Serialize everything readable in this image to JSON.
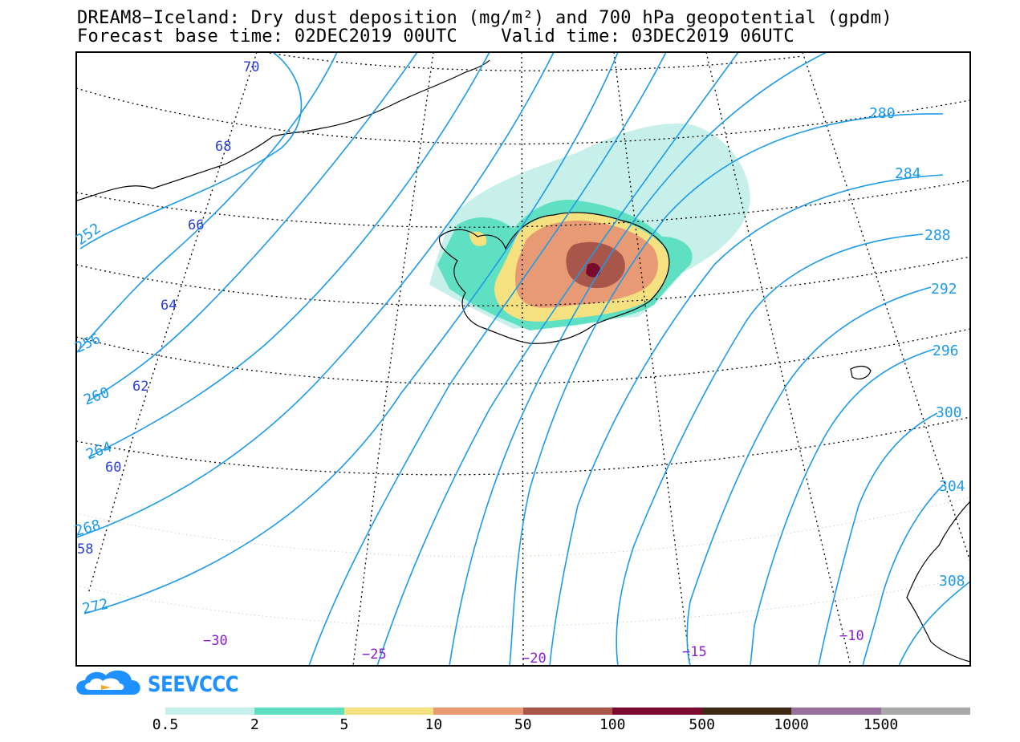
{
  "title_line1": "DREAM8−Iceland: Dry dust deposition (mg/m²) and 700 hPa geopotential (gpdm)",
  "title_line2": "Forecast base time: 02DEC2019 00UTC    Valid time: 03DEC2019 06UTC",
  "logo_text": "SEEVCCC",
  "colors": {
    "contour": "#1e9be8",
    "lat_label": "#2a3fd6",
    "lon_label": "#8a1fd0",
    "frame": "#000000"
  },
  "latitude_labels": [
    "70",
    "68",
    "66",
    "64",
    "62",
    "60",
    "58"
  ],
  "longitude_labels": [
    "−30",
    "−25",
    "−20",
    "−15",
    "−10"
  ],
  "geopotential_contours": [
    "252",
    "256",
    "260",
    "264",
    "268",
    "272",
    "280",
    "284",
    "288",
    "292",
    "296",
    "300",
    "304",
    "308"
  ],
  "colorbar": {
    "labels": [
      "0.5",
      "2",
      "5",
      "10",
      "50",
      "100",
      "500",
      "1000",
      "1500"
    ],
    "colors": [
      "#c6f0e9",
      "#5fe0c2",
      "#f5e17f",
      "#e89a74",
      "#a8564a",
      "#7a0a2e",
      "#3c2a14",
      "#98709c",
      "#a9a9a9"
    ]
  },
  "chart_data": {
    "type": "map",
    "title": "DREAM8−Iceland: Dry dust deposition (mg/m²) and 700 hPa geopotential (gpdm)",
    "subtitle": "Forecast base time: 02DEC2019 00UTC    Valid time: 03DEC2019 06UTC",
    "shaded_field": "Dry dust deposition (mg/m²)",
    "contour_field": "700 hPa geopotential (gpdm)",
    "contour_levels": [
      252,
      256,
      260,
      264,
      268,
      272,
      280,
      284,
      288,
      292,
      296,
      300,
      304,
      308
    ],
    "latitudes": [
      70,
      68,
      66,
      64,
      62,
      60,
      58
    ],
    "longitudes": [
      -30,
      -25,
      -20,
      -15,
      -10
    ],
    "colorbar_bounds": [
      0.5,
      2,
      5,
      10,
      50,
      100,
      500,
      1000,
      1500
    ]
  }
}
